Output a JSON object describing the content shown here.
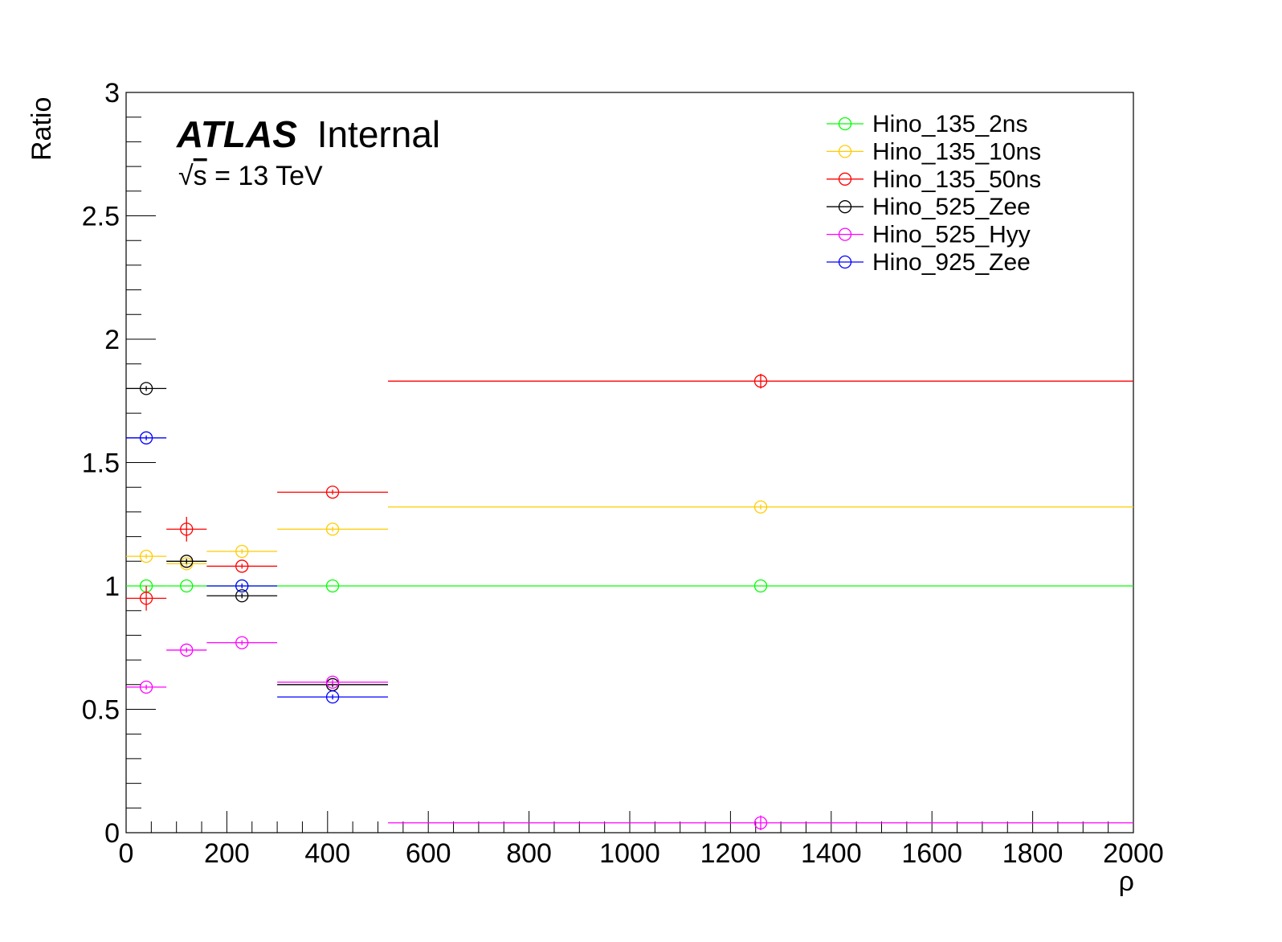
{
  "chart_data": {
    "type": "scatter",
    "title": "",
    "xlabel": "ρ",
    "ylabel": "Ratio",
    "xlim": [
      0,
      2000
    ],
    "ylim": [
      0,
      3
    ],
    "x_ticks": [
      "0",
      "200",
      "400",
      "600",
      "800",
      "1000",
      "1200",
      "1400",
      "1600",
      "1800",
      "2000"
    ],
    "y_ticks": [
      "0",
      "0.5",
      "1",
      "1.5",
      "2",
      "2.5",
      "3"
    ],
    "grid": false,
    "legend_position": "top-right",
    "bins": [
      {
        "low": 0,
        "high": 80,
        "center": 40
      },
      {
        "low": 80,
        "high": 160,
        "center": 120
      },
      {
        "low": 160,
        "high": 300,
        "center": 230
      },
      {
        "low": 300,
        "high": 520,
        "center": 410
      },
      {
        "low": 520,
        "high": 2000,
        "center": 1260
      }
    ],
    "series": [
      {
        "name": "Hino_135_2ns",
        "color": "#00ff00",
        "values": [
          1.0,
          1.0,
          1.0,
          1.0,
          1.0
        ],
        "errors": [
          0,
          0,
          0,
          0,
          0
        ]
      },
      {
        "name": "Hino_135_10ns",
        "color": "#ffcc00",
        "values": [
          1.12,
          1.09,
          1.14,
          1.23,
          1.32
        ],
        "errors": [
          0.01,
          0.01,
          0.01,
          0.01,
          0.01
        ]
      },
      {
        "name": "Hino_135_50ns",
        "color": "#ff0000",
        "values": [
          0.95,
          1.23,
          1.08,
          1.38,
          1.83
        ],
        "errors": [
          0.05,
          0.05,
          0.01,
          0.01,
          0.03
        ]
      },
      {
        "name": "Hino_525_Zee",
        "color": "#000000",
        "values": [
          1.8,
          1.1,
          0.96,
          0.6,
          null
        ],
        "errors": [
          0.01,
          0.01,
          0.01,
          0.01,
          0
        ]
      },
      {
        "name": "Hino_525_Hyy",
        "color": "#ff00ff",
        "values": [
          0.59,
          0.74,
          0.77,
          0.61,
          0.04
        ],
        "errors": [
          0.01,
          0.01,
          0.01,
          0.01,
          0.03
        ]
      },
      {
        "name": "Hino_925_Zee",
        "color": "#0000ff",
        "values": [
          1.6,
          null,
          1.0,
          0.55,
          null
        ],
        "errors": [
          0.01,
          0,
          0.01,
          0.01,
          0
        ]
      }
    ]
  },
  "annotations": {
    "atlas": "ATLAS",
    "internal": "Internal",
    "energy_sqrt": "√",
    "energy_s": "s",
    "energy_rest": " = 13 TeV"
  }
}
